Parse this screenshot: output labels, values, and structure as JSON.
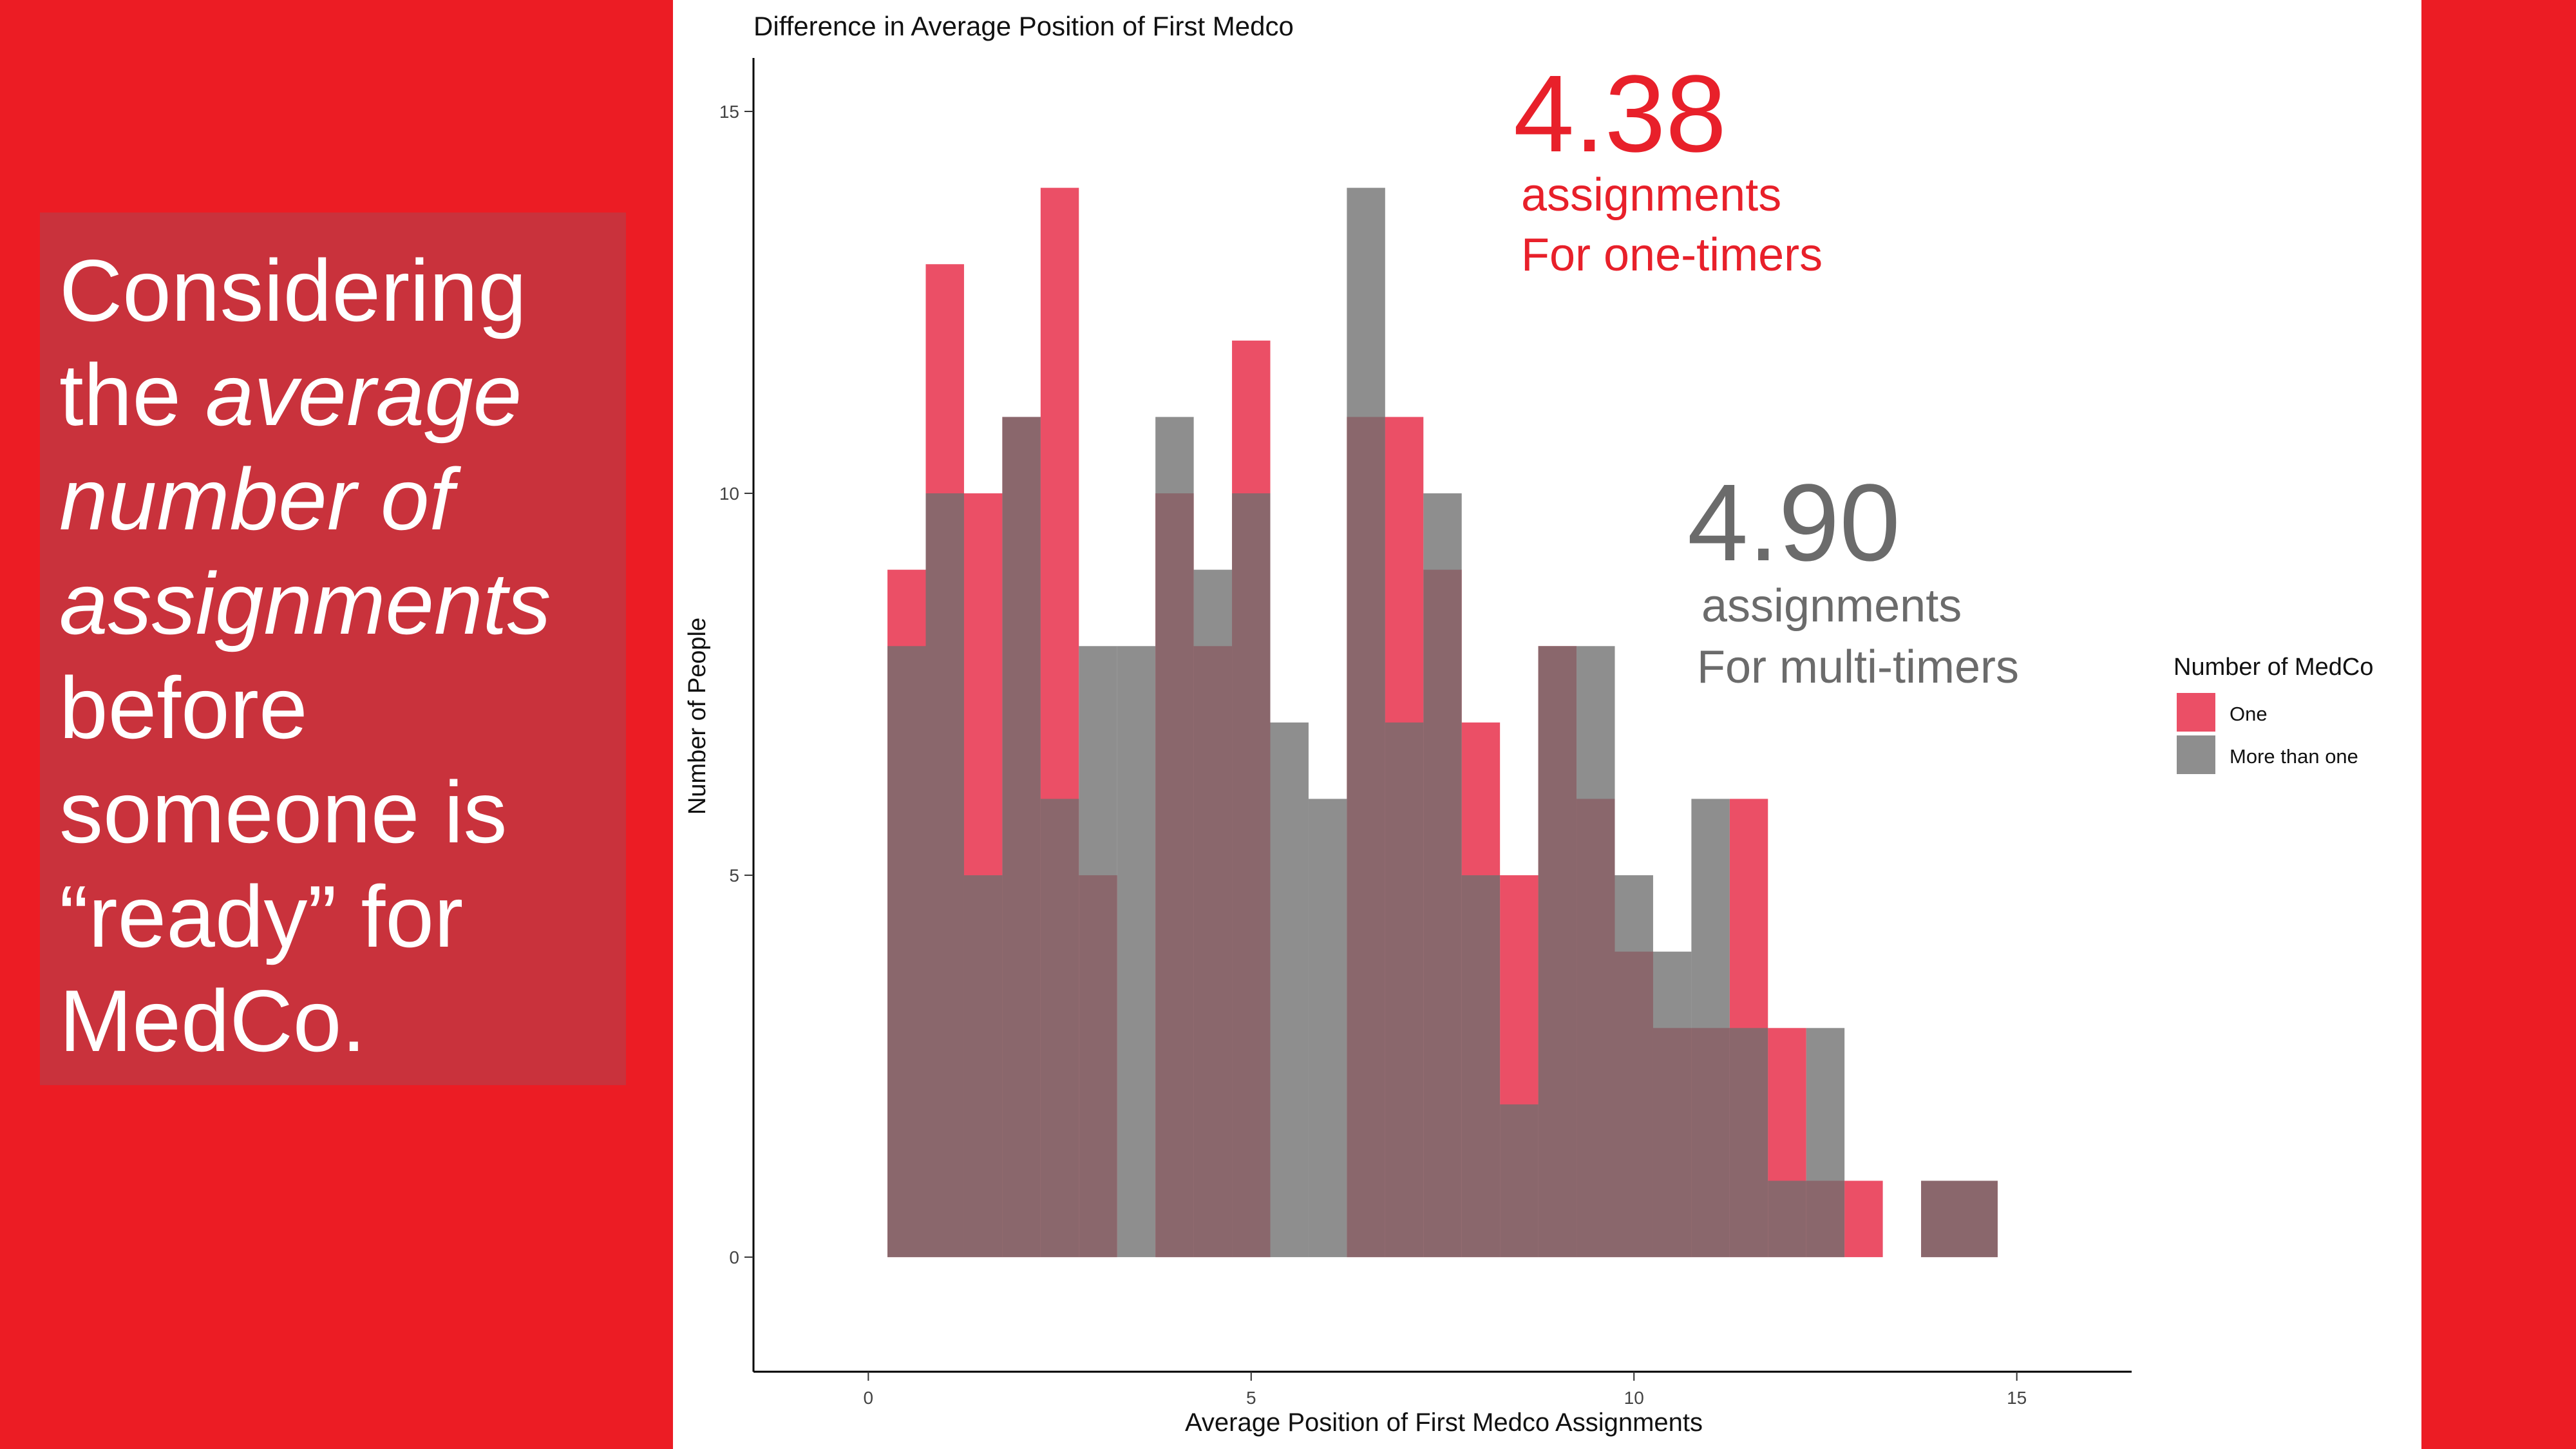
{
  "slide": {
    "colors": {
      "band": "#ec1c24",
      "panel": "#c9323c",
      "text": "#ffffff"
    },
    "headline": {
      "p1": "Considering the ",
      "em": "average number of assignments",
      "p2": " before someone is “ready” for MedCo."
    }
  },
  "chart_data": {
    "type": "histogram",
    "title": "Difference in Average Position of First Medco",
    "xlabel": "Average Position of First Medco Assignments",
    "ylabel": "Number of People",
    "xlim": [
      -1.5,
      16.5
    ],
    "ylim": [
      -1.5,
      15.7
    ],
    "xticks": [
      0,
      5,
      10,
      15
    ],
    "yticks": [
      0,
      5,
      10,
      15
    ],
    "bin_width": 0.5,
    "bin_starts": [
      0.25,
      0.75,
      1.25,
      1.75,
      2.25,
      2.75,
      3.25,
      3.75,
      4.25,
      4.75,
      5.25,
      5.75,
      6.25,
      6.75,
      7.25,
      7.75,
      8.25,
      8.75,
      9.25,
      9.75,
      10.25,
      10.75,
      11.25,
      11.75,
      12.25,
      12.75,
      13.25,
      13.75,
      14.25
    ],
    "series": [
      {
        "name": "One",
        "color": "#e8304b",
        "opacity": 0.85,
        "values": [
          9,
          13,
          10,
          11,
          14,
          5,
          0,
          10,
          8,
          12,
          0,
          0,
          11,
          11,
          9,
          7,
          5,
          8,
          6,
          4,
          3,
          3,
          6,
          3,
          1,
          1,
          0,
          1,
          1
        ]
      },
      {
        "name": "More than one",
        "color": "#6e6e6e",
        "opacity": 0.78,
        "values": [
          8,
          10,
          5,
          11,
          6,
          8,
          8,
          11,
          9,
          10,
          7,
          6,
          14,
          7,
          10,
          5,
          2,
          8,
          8,
          5,
          4,
          6,
          3,
          1,
          3,
          0,
          0,
          1,
          1
        ]
      }
    ],
    "legend": {
      "title": "Number of MedCo",
      "position": "right"
    },
    "annotations": [
      {
        "value": "4.38",
        "line1": "assignments",
        "line2": "For one-timers",
        "color": "#e8202a"
      },
      {
        "value": "4.90",
        "line1": "assignments",
        "line2": "For multi-timers",
        "color": "#6b6b6b"
      }
    ]
  }
}
